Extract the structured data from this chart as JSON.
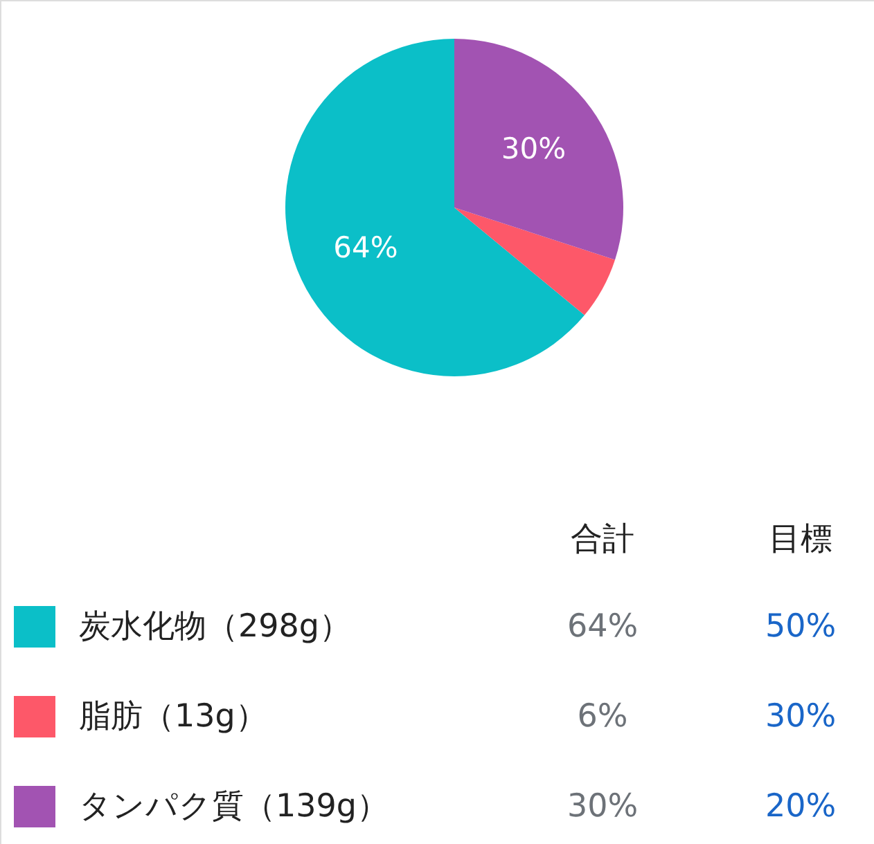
{
  "chart_data": {
    "type": "pie",
    "categories": [
      "炭水化物（298g）",
      "脂肪（13g）",
      "タンパク質（139g）"
    ],
    "values": [
      64,
      6,
      30
    ],
    "colors": [
      "#0bbfc8",
      "#fd5869",
      "#a253b2"
    ],
    "value_labels": [
      "64%",
      null,
      "30%"
    ],
    "legend": "bottom",
    "annotations": [
      "合計",
      "目標",
      "64%",
      "50%",
      "6%",
      "30%",
      "30%",
      "20%"
    ]
  }
}
